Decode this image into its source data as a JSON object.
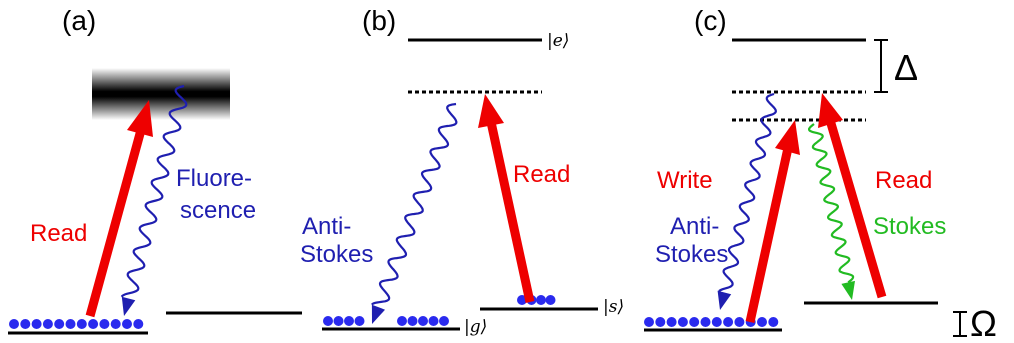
{
  "panels": {
    "a": {
      "label": "(a)",
      "read_label": "Read",
      "fluor_label_1": "Fluore-",
      "fluor_label_2": "scence"
    },
    "b": {
      "label": "(b)",
      "ket_e": "|e⟩",
      "ket_g": "|g⟩",
      "ket_s": "|s⟩",
      "antistokes_label_1": "Anti-",
      "antistokes_label_2": "Stokes",
      "read_label": "Read"
    },
    "c": {
      "label": "(c)",
      "delta_label": "Δ",
      "omega_label": "Ω",
      "write_label": "Write",
      "antistokes_label_1": "Anti-",
      "antistokes_label_2": "Stokes",
      "read_label": "Read",
      "stokes_label": "Stokes"
    }
  },
  "colors": {
    "read_arrow": "#ee0000",
    "antistokes": "#1f1fb0",
    "stokes": "#22bb22",
    "atoms": "#2a2aee",
    "level": "#000000"
  }
}
